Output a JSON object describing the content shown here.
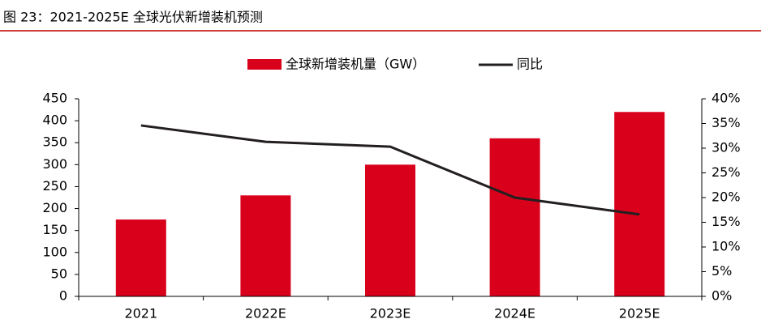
{
  "chart_data": {
    "type": "bar",
    "title": "图 23：2021-2025E 全球光伏新增装机预测",
    "categories": [
      "2021",
      "2022E",
      "2023E",
      "2024E",
      "2025E"
    ],
    "series": [
      {
        "name": "全球新增装机量（GW）",
        "color": "#d9001b",
        "values": [
          175,
          230,
          300,
          360,
          420
        ]
      },
      {
        "name": "同比",
        "color": "#231f20",
        "type": "line",
        "axis": "y2",
        "values": [
          34.6,
          31.3,
          30.3,
          20,
          16.6
        ]
      }
    ],
    "ylim": [
      0,
      450
    ],
    "yticks": [
      0,
      50,
      100,
      150,
      200,
      250,
      300,
      350,
      400,
      450
    ],
    "y2lim": [
      0,
      40
    ],
    "y2ticks": [
      {
        "value": 0,
        "label": "0%"
      },
      {
        "value": 5,
        "label": "5%"
      },
      {
        "value": 10,
        "label": "10%"
      },
      {
        "value": 15,
        "label": "15%"
      },
      {
        "value": 20,
        "label": "20%"
      },
      {
        "value": 25,
        "label": "25%"
      },
      {
        "value": 30,
        "label": "30%"
      },
      {
        "value": 35,
        "label": "35%"
      },
      {
        "value": 40,
        "label": "40%"
      }
    ],
    "grid": false,
    "legend": "top"
  }
}
